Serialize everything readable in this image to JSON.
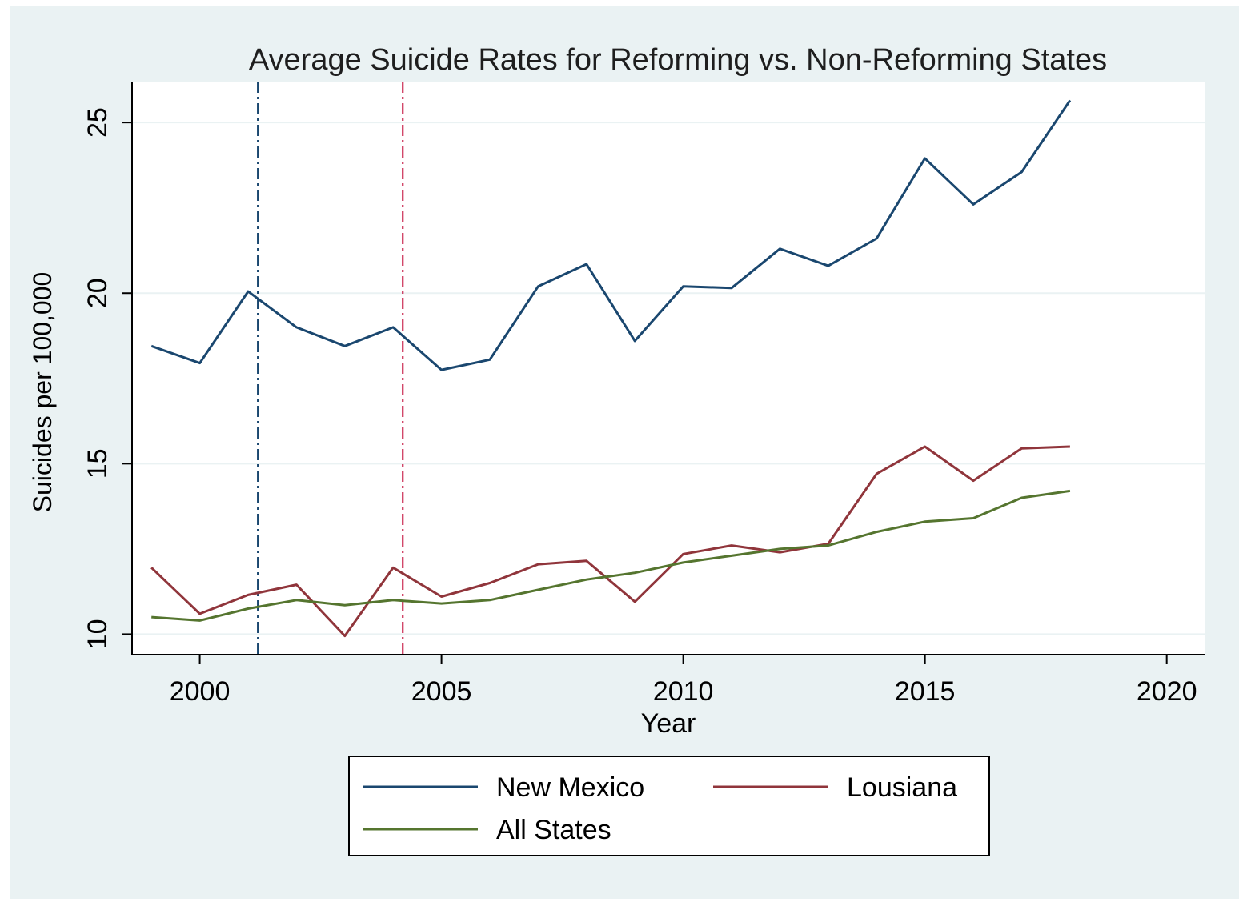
{
  "colors": {
    "outer_background": "#eaf2f3",
    "plot_background": "#ffffff",
    "grid": "#eaf2f3",
    "axis": "#000000",
    "new_mexico": "#1a476f",
    "louisiana": "#90353b",
    "all_states": "#55752f",
    "vline_2001": "#1a476f",
    "vline_2004": "#c10534"
  },
  "chart_data": {
    "type": "line",
    "title": "Average Suicide Rates for Reforming vs. Non-Reforming States",
    "xlabel": "Year",
    "ylabel": "Suicides per 100,000",
    "xlim": [
      1998.6,
      2020.8
    ],
    "ylim": [
      9.4,
      26.2
    ],
    "xticks": [
      2000,
      2005,
      2010,
      2015,
      2020
    ],
    "yticks": [
      10,
      15,
      20,
      25
    ],
    "grid": true,
    "legend_position": "bottom",
    "reference_lines": [
      {
        "x": 2001.2,
        "style": "dash-dot"
      },
      {
        "x": 2004.2,
        "style": "dash-dot"
      }
    ],
    "x": [
      1999,
      2000,
      2001,
      2002,
      2003,
      2004,
      2005,
      2006,
      2007,
      2008,
      2009,
      2010,
      2011,
      2012,
      2013,
      2014,
      2015,
      2016,
      2017,
      2018
    ],
    "series": [
      {
        "name": "New Mexico",
        "values": [
          18.45,
          17.95,
          20.05,
          19.0,
          18.45,
          19.0,
          17.75,
          18.05,
          20.2,
          20.85,
          18.6,
          20.2,
          20.15,
          21.3,
          20.8,
          21.6,
          23.95,
          22.6,
          23.55,
          25.65
        ]
      },
      {
        "name": "Lousiana",
        "values": [
          11.95,
          10.6,
          11.15,
          11.45,
          9.95,
          11.95,
          11.1,
          11.5,
          12.05,
          12.15,
          10.95,
          12.35,
          12.6,
          12.4,
          12.65,
          14.7,
          15.5,
          14.5,
          15.45,
          15.5
        ]
      },
      {
        "name": "All States",
        "values": [
          10.5,
          10.4,
          10.75,
          11.0,
          10.85,
          11.0,
          10.9,
          11.0,
          11.3,
          11.6,
          11.8,
          12.1,
          12.3,
          12.5,
          12.6,
          13.0,
          13.3,
          13.4,
          14.0,
          14.2
        ]
      }
    ]
  }
}
